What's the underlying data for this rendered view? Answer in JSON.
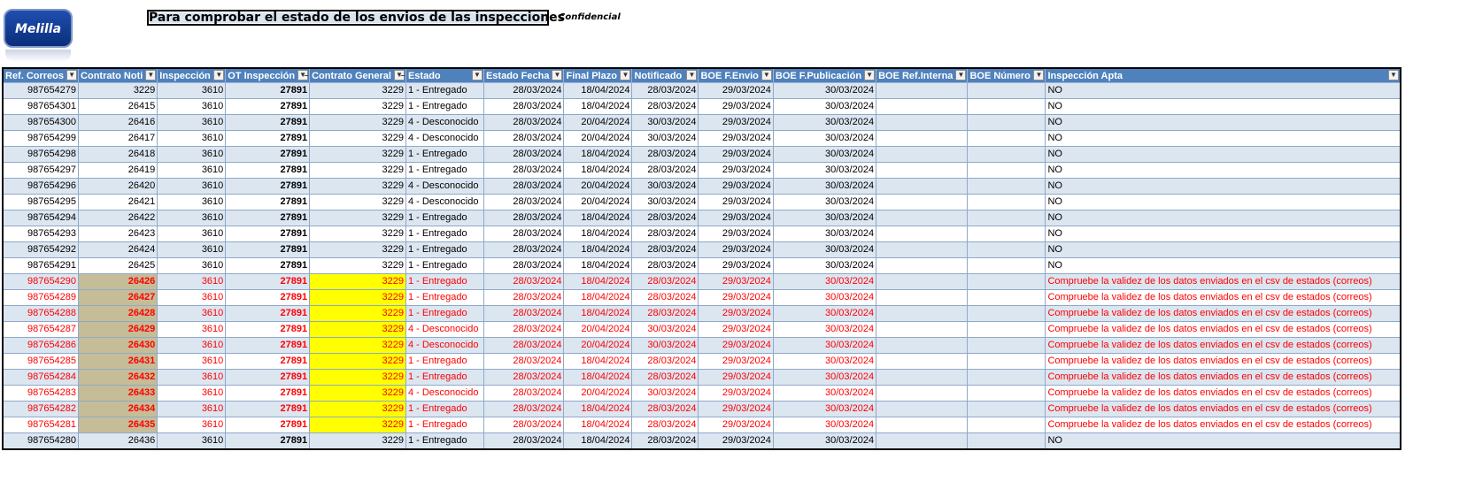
{
  "header": {
    "logo_text": "Melilla",
    "title": "Para comprobar el estado de los envios de las inspecciones",
    "confidential": "Confidencial"
  },
  "columns": [
    "Ref. Correos",
    "Contrato Noti",
    "Inspección",
    "OT Inspección",
    "Contrato General",
    "Estado",
    "Estado Fecha",
    "Final Plazo",
    "Notificado",
    "BOE F.Envio",
    "BOE F.Publicación",
    "BOE Ref.Interna",
    "BOE Número",
    "Inspección Apta"
  ],
  "rows": [
    [
      "987654279",
      "3229",
      "3610",
      "27891",
      "3229",
      "1 - Entregado",
      "28/03/2024",
      "18/04/2024",
      "28/03/2024",
      "29/03/2024",
      "30/03/2024",
      "",
      "",
      "NO"
    ],
    [
      "987654301",
      "26415",
      "3610",
      "27891",
      "3229",
      "1 - Entregado",
      "28/03/2024",
      "18/04/2024",
      "28/03/2024",
      "29/03/2024",
      "30/03/2024",
      "",
      "",
      "NO"
    ],
    [
      "987654300",
      "26416",
      "3610",
      "27891",
      "3229",
      "4 - Desconocido",
      "28/03/2024",
      "20/04/2024",
      "30/03/2024",
      "29/03/2024",
      "30/03/2024",
      "",
      "",
      "NO"
    ],
    [
      "987654299",
      "26417",
      "3610",
      "27891",
      "3229",
      "4 - Desconocido",
      "28/03/2024",
      "20/04/2024",
      "30/03/2024",
      "29/03/2024",
      "30/03/2024",
      "",
      "",
      "NO"
    ],
    [
      "987654298",
      "26418",
      "3610",
      "27891",
      "3229",
      "1 - Entregado",
      "28/03/2024",
      "18/04/2024",
      "28/03/2024",
      "29/03/2024",
      "30/03/2024",
      "",
      "",
      "NO"
    ],
    [
      "987654297",
      "26419",
      "3610",
      "27891",
      "3229",
      "1 - Entregado",
      "28/03/2024",
      "18/04/2024",
      "28/03/2024",
      "29/03/2024",
      "30/03/2024",
      "",
      "",
      "NO"
    ],
    [
      "987654296",
      "26420",
      "3610",
      "27891",
      "3229",
      "4 - Desconocido",
      "28/03/2024",
      "20/04/2024",
      "30/03/2024",
      "29/03/2024",
      "30/03/2024",
      "",
      "",
      "NO"
    ],
    [
      "987654295",
      "26421",
      "3610",
      "27891",
      "3229",
      "4 - Desconocido",
      "28/03/2024",
      "20/04/2024",
      "30/03/2024",
      "29/03/2024",
      "30/03/2024",
      "",
      "",
      "NO"
    ],
    [
      "987654294",
      "26422",
      "3610",
      "27891",
      "3229",
      "1 - Entregado",
      "28/03/2024",
      "18/04/2024",
      "28/03/2024",
      "29/03/2024",
      "30/03/2024",
      "",
      "",
      "NO"
    ],
    [
      "987654293",
      "26423",
      "3610",
      "27891",
      "3229",
      "1 - Entregado",
      "28/03/2024",
      "18/04/2024",
      "28/03/2024",
      "29/03/2024",
      "30/03/2024",
      "",
      "",
      "NO"
    ],
    [
      "987654292",
      "26424",
      "3610",
      "27891",
      "3229",
      "1 - Entregado",
      "28/03/2024",
      "18/04/2024",
      "28/03/2024",
      "29/03/2024",
      "30/03/2024",
      "",
      "",
      "NO"
    ],
    [
      "987654291",
      "26425",
      "3610",
      "27891",
      "3229",
      "1 - Entregado",
      "28/03/2024",
      "18/04/2024",
      "28/03/2024",
      "29/03/2024",
      "30/03/2024",
      "",
      "",
      "NO"
    ],
    [
      "987654290",
      "26426",
      "3610",
      "27891",
      "3229",
      "1 - Entregado",
      "28/03/2024",
      "18/04/2024",
      "28/03/2024",
      "29/03/2024",
      "30/03/2024",
      "",
      "",
      "Compruebe la validez de los datos enviados en el csv de estados (correos)"
    ],
    [
      "987654289",
      "26427",
      "3610",
      "27891",
      "3229",
      "1 - Entregado",
      "28/03/2024",
      "18/04/2024",
      "28/03/2024",
      "29/03/2024",
      "30/03/2024",
      "",
      "",
      "Compruebe la validez de los datos enviados en el csv de estados (correos)"
    ],
    [
      "987654288",
      "26428",
      "3610",
      "27891",
      "3229",
      "1 - Entregado",
      "28/03/2024",
      "18/04/2024",
      "28/03/2024",
      "29/03/2024",
      "30/03/2024",
      "",
      "",
      "Compruebe la validez de los datos enviados en el csv de estados (correos)"
    ],
    [
      "987654287",
      "26429",
      "3610",
      "27891",
      "3229",
      "4 - Desconocido",
      "28/03/2024",
      "20/04/2024",
      "30/03/2024",
      "29/03/2024",
      "30/03/2024",
      "",
      "",
      "Compruebe la validez de los datos enviados en el csv de estados (correos)"
    ],
    [
      "987654286",
      "26430",
      "3610",
      "27891",
      "3229",
      "4 - Desconocido",
      "28/03/2024",
      "20/04/2024",
      "30/03/2024",
      "29/03/2024",
      "30/03/2024",
      "",
      "",
      "Compruebe la validez de los datos enviados en el csv de estados (correos)"
    ],
    [
      "987654285",
      "26431",
      "3610",
      "27891",
      "3229",
      "1 - Entregado",
      "28/03/2024",
      "18/04/2024",
      "28/03/2024",
      "29/03/2024",
      "30/03/2024",
      "",
      "",
      "Compruebe la validez de los datos enviados en el csv de estados (correos)"
    ],
    [
      "987654284",
      "26432",
      "3610",
      "27891",
      "3229",
      "1 - Entregado",
      "28/03/2024",
      "18/04/2024",
      "28/03/2024",
      "29/03/2024",
      "30/03/2024",
      "",
      "",
      "Compruebe la validez de los datos enviados en el csv de estados (correos)"
    ],
    [
      "987654283",
      "26433",
      "3610",
      "27891",
      "3229",
      "4 - Desconocido",
      "28/03/2024",
      "20/04/2024",
      "30/03/2024",
      "29/03/2024",
      "30/03/2024",
      "",
      "",
      "Compruebe la validez de los datos enviados en el csv de estados (correos)"
    ],
    [
      "987654282",
      "26434",
      "3610",
      "27891",
      "3229",
      "1 - Entregado",
      "28/03/2024",
      "18/04/2024",
      "28/03/2024",
      "29/03/2024",
      "30/03/2024",
      "",
      "",
      "Compruebe la validez de los datos enviados en el csv de estados (correos)"
    ],
    [
      "987654281",
      "26435",
      "3610",
      "27891",
      "3229",
      "1 - Entregado",
      "28/03/2024",
      "18/04/2024",
      "28/03/2024",
      "29/03/2024",
      "30/03/2024",
      "",
      "",
      "Compruebe la validez de los datos enviados en el csv de estados (correos)"
    ],
    [
      "987654280",
      "26436",
      "3610",
      "27891",
      "3229",
      "1 - Entregado",
      "28/03/2024",
      "18/04/2024",
      "28/03/2024",
      "29/03/2024",
      "30/03/2024",
      "",
      "",
      "NO"
    ]
  ],
  "warn_rows": [
    12,
    13,
    14,
    15,
    16,
    17,
    18,
    19,
    20,
    21
  ],
  "filtered_columns": [
    3,
    4
  ],
  "colors": {
    "header_bg": "#4f81bd",
    "band": "#dce6f1",
    "warn_text": "#ff0000",
    "tan": "#c4bd97",
    "yellow": "#ffff00"
  }
}
